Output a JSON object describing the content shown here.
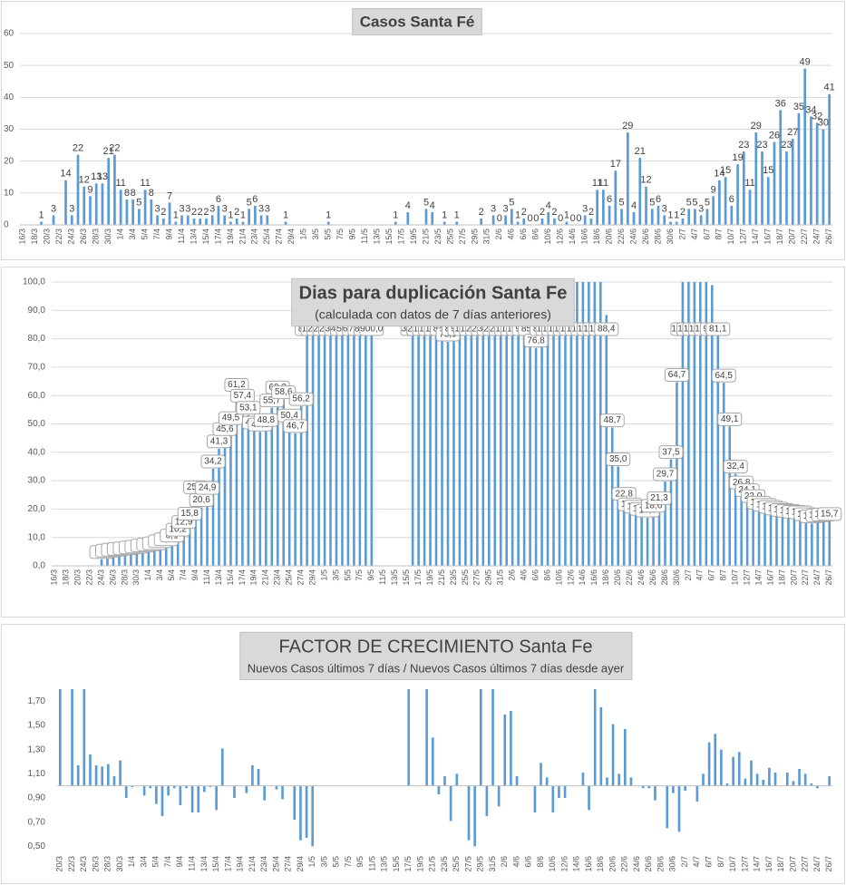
{
  "chart_data": [
    {
      "type": "bar",
      "title": "Casos Santa Fé",
      "color": "#5b9bd5",
      "grid": true,
      "ylim": [
        0,
        60
      ],
      "yticks": [
        0,
        10,
        20,
        30,
        40,
        50,
        60
      ],
      "categories": [
        "16/3",
        null,
        "18/3",
        null,
        "20/3",
        null,
        "22/3",
        null,
        "24/3",
        null,
        "26/3",
        null,
        "28/3",
        null,
        "30/3",
        null,
        "1/4",
        null,
        "3/4",
        null,
        "5/4",
        null,
        "7/4",
        null,
        "9/4",
        null,
        "11/4",
        null,
        "13/4",
        null,
        "15/4",
        null,
        "17/4",
        null,
        "19/4",
        null,
        "21/4",
        null,
        "23/4",
        null,
        "25/4",
        null,
        "27/4",
        null,
        "29/4",
        null,
        "1/5",
        null,
        "3/5",
        null,
        "5/5",
        null,
        "7/5",
        null,
        "9/5",
        null,
        "11/5",
        null,
        "13/5",
        null,
        "15/5",
        null,
        "17/5",
        null,
        "19/5",
        null,
        "21/5",
        null,
        "23/5",
        null,
        "25/5",
        null,
        "27/5",
        null,
        "29/5",
        null,
        "31/5",
        null,
        "2/6",
        null,
        "4/6",
        null,
        "6/6",
        null,
        "8/6",
        null,
        "10/6",
        null,
        "12/6",
        null,
        "14/6",
        null,
        "16/6",
        null,
        "18/6",
        null,
        "20/6",
        null,
        "22/6",
        null,
        "24/6",
        null,
        "26/6",
        null,
        "28/6",
        null,
        "30/6",
        null,
        "2/7",
        null,
        "4/7",
        null,
        "6/7",
        null,
        "8/7",
        null,
        "10/7",
        null,
        "12/7",
        null,
        "14/7",
        null,
        "16/7",
        null,
        "18/7",
        null,
        "20/7",
        null,
        "22/7",
        null,
        "24/7",
        null,
        "26/7"
      ],
      "values": [
        null,
        null,
        null,
        1,
        null,
        3,
        null,
        14,
        3,
        22,
        12,
        9,
        13,
        13,
        21,
        22,
        11,
        8,
        8,
        5,
        11,
        8,
        3,
        2,
        7,
        1,
        3,
        3,
        2,
        2,
        2,
        3,
        6,
        3,
        1,
        2,
        1,
        5,
        6,
        3,
        3,
        null,
        null,
        1,
        null,
        null,
        null,
        null,
        null,
        null,
        1,
        null,
        null,
        null,
        null,
        null,
        null,
        null,
        null,
        null,
        null,
        1,
        null,
        4,
        null,
        null,
        5,
        4,
        null,
        1,
        null,
        1,
        null,
        null,
        null,
        2,
        null,
        3,
        0,
        3,
        5,
        1,
        2,
        0,
        0,
        2,
        4,
        2,
        0,
        1,
        0,
        0,
        3,
        2,
        11,
        11,
        6,
        17,
        5,
        29,
        4,
        21,
        12,
        5,
        6,
        3,
        1,
        1,
        2,
        5,
        5,
        3,
        5,
        9,
        14,
        15,
        6,
        19,
        23,
        11,
        29,
        23,
        15,
        26,
        36,
        23,
        27,
        35,
        49,
        34,
        32,
        30,
        41
      ]
    },
    {
      "type": "bar",
      "title": "Dias para duplicación Santa Fe",
      "subtitle": "(calculada con datos de 7 días anteriores)",
      "color": "#5b9bd5",
      "grid": true,
      "ylim": [
        0,
        100
      ],
      "yticks": [
        {
          "value": 0,
          "label": "0,0"
        },
        {
          "value": 10,
          "label": "10,0"
        },
        {
          "value": 20,
          "label": "20,0"
        },
        {
          "value": 30,
          "label": "30,0"
        },
        {
          "value": 40,
          "label": "40,0"
        },
        {
          "value": 50,
          "label": "50,0"
        },
        {
          "value": 60,
          "label": "60,0"
        },
        {
          "value": 70,
          "label": "70,0"
        },
        {
          "value": 80,
          "label": "80,0"
        },
        {
          "value": 90,
          "label": "90,0"
        },
        {
          "value": 100,
          "label": "100,0"
        }
      ],
      "categories": [
        "16/3",
        null,
        "18/3",
        null,
        "20/3",
        null,
        "22/3",
        null,
        "24/3",
        null,
        "26/3",
        null,
        "28/3",
        null,
        "30/3",
        null,
        "1/4",
        null,
        "3/4",
        null,
        "5/4",
        null,
        "7/4",
        null,
        "9/4",
        null,
        "11/4",
        null,
        "13/4",
        null,
        "15/4",
        null,
        "17/4",
        null,
        "19/4",
        null,
        "21/4",
        null,
        "23/4",
        null,
        "25/4",
        null,
        "27/4",
        null,
        "29/4",
        null,
        "1/5",
        null,
        "3/5",
        null,
        "5/5",
        null,
        "7/5",
        null,
        "9/5",
        null,
        "11/5",
        null,
        "13/5",
        null,
        "15/5",
        null,
        "17/5",
        null,
        "19/5",
        null,
        "21/5",
        null,
        "23/5",
        null,
        "25/5",
        null,
        "27/5",
        null,
        "29/5",
        null,
        "31/5",
        null,
        "2/6",
        null,
        "4/6",
        null,
        "6/6",
        null,
        "8/6",
        null,
        "10/6",
        null,
        "12/6",
        null,
        "14/6",
        null,
        "16/6",
        null,
        "18/6",
        null,
        "20/6",
        null,
        "22/6",
        null,
        "24/6",
        null,
        "26/6",
        null,
        "28/6",
        null,
        "30/6",
        null,
        "2/7",
        null,
        "4/7",
        null,
        "6/7",
        null,
        "8/7",
        null,
        "10/7",
        null,
        "12/7",
        null,
        "14/7",
        null,
        "16/7",
        null,
        "18/7",
        null,
        "20/7",
        null,
        "22/7",
        null,
        "24/7",
        null,
        "26/7"
      ],
      "values": [
        null,
        null,
        null,
        null,
        null,
        null,
        null,
        null,
        2.3,
        2.8,
        3.1,
        3.4,
        3.6,
        3.9,
        4.2,
        4.6,
        5.0,
        5.4,
        6.1,
        6.8,
        8.1,
        10.2,
        12.9,
        15.8,
        25.1,
        20.6,
        24.9,
        34.2,
        41.3,
        45.6,
        49.5,
        61.2,
        57.4,
        53.1,
        47.9,
        47.2,
        48.8,
        55.7,
        60.3,
        58.6,
        50.4,
        46.7,
        56.2,
        85.3,
        160.6,
        230.0,
        260.0,
        280.0,
        350.0,
        420.0,
        500.0,
        600.0,
        700.0,
        800.0,
        900.0,
        null,
        null,
        null,
        null,
        null,
        null,
        300.0,
        250.0,
        190.0,
        165.0,
        114.8,
        84.7,
        78.9,
        87.3,
        91.3,
        112.5,
        150.0,
        200.0,
        250.0,
        300.0,
        260.0,
        220.0,
        180.0,
        150.0,
        138.2,
        95.6,
        85.2,
        76.8,
        86.1,
        101.2,
        139.6,
        153.7,
        121.4,
        118.3,
        111.1,
        126.8,
        180.0,
        195.5,
        150.0,
        88.4,
        48.7,
        35.0,
        22.8,
        19.1,
        18.3,
        17.5,
        16.9,
        18.6,
        21.3,
        29.7,
        37.5,
        64.7,
        100.2,
        112.5,
        114.6,
        150.0,
        140.0,
        98.9,
        81.1,
        64.5,
        49.1,
        32.4,
        26.8,
        24.1,
        22.0,
        19.7,
        18.9,
        18.2,
        17.6,
        17.1,
        16.8,
        16.5,
        16.3,
        15.6,
        14.9,
        15.2,
        15.5,
        15.7
      ],
      "value_labels": [
        null,
        null,
        null,
        null,
        null,
        null,
        null,
        null,
        "2,3",
        "2,8",
        "3,1",
        "3,4",
        "3,6",
        "3,9",
        "4,2",
        "4,6",
        "5,0",
        "5,4",
        "6,1",
        "6,8",
        "8,1",
        "10,2",
        "12,9",
        "15,8",
        "25,1",
        "20,6",
        "24,9",
        "34,2",
        "41,3",
        "45,6",
        "49,5",
        "61,2",
        "57,4",
        "53,1",
        "47,9",
        "47,2",
        "48,8",
        "55,7",
        "60,3",
        "58,6",
        "50,4",
        "46,7",
        "56,2",
        "85,3",
        "160,6",
        "230,0",
        "260,0",
        "280,0",
        "350,0",
        "420,0",
        "500,0",
        "600,0",
        "700,0",
        "800,0",
        "900,0",
        null,
        null,
        null,
        null,
        null,
        null,
        "300,0",
        "250,0",
        "190,0",
        "165,0",
        "114,8",
        "84,7",
        "78,9",
        "87,3",
        "91,3",
        "112,5",
        "150,0",
        "200,0",
        "250,0",
        "300,0",
        "260,0",
        "220,0",
        "180,0",
        "150,0",
        "138,2",
        "95,6",
        "85,2",
        "76,8",
        "86,1",
        "101,2",
        "139,6",
        "153,7",
        "121,4",
        "118,3",
        "111,1",
        "126,8",
        "180,0",
        "195,5",
        "150,0",
        "88,4",
        "48,7",
        "35,0",
        "22,8",
        "19,1",
        "18,3",
        "17,5",
        "16,9",
        "18,6",
        "21,3",
        "29,7",
        "37,5",
        "64,7",
        "100,2",
        "112,5",
        "114,6",
        "150,0",
        "140,0",
        "98,9",
        "81,1",
        "64,5",
        "49,1",
        "32,4",
        "26,8",
        "24,1",
        "22,0",
        "19,7",
        "18,9",
        "18,2",
        "17,6",
        "17,1",
        "16,8",
        "16,5",
        "16,3",
        "15,6",
        "14,9",
        "15,2",
        "15,5",
        "15,7"
      ]
    },
    {
      "type": "bar",
      "title": "FACTOR DE CRECIMIENTO Santa Fe",
      "subtitle": "Nuevos Casos últimos 7 días / Nuevos Casos últimos 7 días desde ayer",
      "color": "#5b9bd5",
      "grid": false,
      "ylim": [
        0.45,
        1.8
      ],
      "axis_crossing": 1,
      "yticks": [
        {
          "value": 0.5,
          "label": "0,50"
        },
        {
          "value": 0.7,
          "label": "0,70"
        },
        {
          "value": 0.9,
          "label": "0,90"
        },
        {
          "value": 1.1,
          "label": "1,10"
        },
        {
          "value": 1.3,
          "label": "1,30"
        },
        {
          "value": 1.5,
          "label": "1,50"
        },
        {
          "value": 1.7,
          "label": "1,70"
        }
      ],
      "categories": [
        "20/3",
        null,
        "22/3",
        null,
        "24/3",
        null,
        "26/3",
        null,
        "28/3",
        null,
        "30/3",
        null,
        "1/4",
        null,
        "3/4",
        null,
        "5/4",
        null,
        "7/4",
        null,
        "9/4",
        null,
        "11/4",
        null,
        "13/4",
        null,
        "15/4",
        null,
        "17/4",
        null,
        "19/4",
        null,
        "21/4",
        null,
        "23/4",
        null,
        "25/4",
        null,
        "27/4",
        null,
        "29/4",
        null,
        "1/5",
        null,
        "3/5",
        null,
        "5/5",
        null,
        "7/5",
        null,
        "9/5",
        null,
        "11/5",
        null,
        "13/5",
        null,
        "15/5",
        null,
        "17/5",
        null,
        "19/5",
        null,
        "21/5",
        null,
        "23/5",
        null,
        "25/5",
        null,
        "27/5",
        null,
        "29/5",
        null,
        "31/5",
        null,
        "2/6",
        null,
        "4/6",
        null,
        "6/6",
        null,
        "8/6",
        null,
        "10/6",
        null,
        "12/6",
        null,
        "14/6",
        null,
        "16/6",
        null,
        "18/6",
        null,
        "20/6",
        null,
        "22/6",
        null,
        "24/6",
        null,
        "26/6",
        null,
        "28/6",
        null,
        "30/6",
        null,
        "2/7",
        null,
        "4/7",
        null,
        "6/7",
        null,
        "8/7",
        null,
        "10/7",
        null,
        "12/7",
        null,
        "14/7",
        null,
        "16/7",
        null,
        "18/7",
        null,
        "20/7",
        null,
        "22/7",
        null,
        "24/7",
        null,
        "26/7"
      ],
      "values": [
        1.8,
        null,
        1.8,
        1.17,
        1.8,
        1.26,
        1.17,
        1.16,
        1.18,
        1.08,
        1.21,
        0.9,
        0.99,
        1.0,
        0.92,
        0.98,
        0.85,
        0.75,
        0.92,
        0.98,
        0.84,
        0.98,
        0.78,
        0.78,
        0.95,
        0.99,
        0.8,
        1.31,
        null,
        0.9,
        null,
        0.94,
        1.17,
        1.14,
        0.88,
        null,
        0.97,
        0.89,
        null,
        0.72,
        0.55,
        0.57,
        0.5,
        null,
        null,
        null,
        null,
        null,
        null,
        null,
        null,
        null,
        null,
        null,
        null,
        null,
        null,
        null,
        1.8,
        null,
        null,
        1.8,
        1.4,
        0.93,
        1.08,
        0.71,
        1.1,
        null,
        0.55,
        0.5,
        1.8,
        0.75,
        1.8,
        0.83,
        1.59,
        1.62,
        1.08,
        null,
        null,
        0.78,
        1.19,
        1.07,
        0.78,
        0.9,
        0.9,
        null,
        null,
        1.11,
        0.8,
        1.8,
        1.65,
        1.07,
        1.51,
        1.1,
        1.47,
        1.07,
        null,
        0.98,
        0.98,
        0.88,
        null,
        0.65,
        0.94,
        0.62,
        0.96,
        null,
        0.87,
        1.1,
        1.36,
        1.43,
        1.3,
        1.02,
        1.24,
        1.28,
        1.06,
        1.21,
        1.1,
        1.05,
        1.15,
        1.11,
        null,
        1.11,
        1.04,
        1.14,
        1.1,
        1.02,
        0.98,
        null,
        1.08
      ]
    }
  ]
}
